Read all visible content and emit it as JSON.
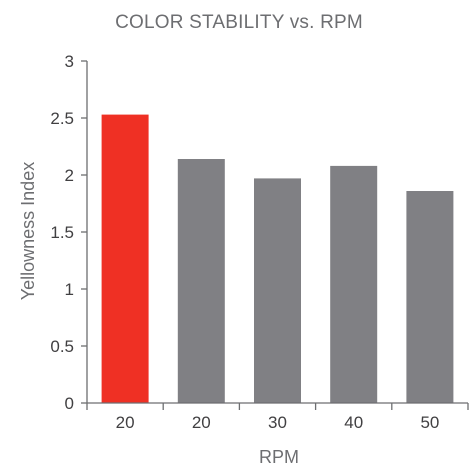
{
  "chart_data": {
    "type": "bar",
    "title": "COLOR STABILITY vs. RPM",
    "xlabel": "RPM",
    "ylabel": "Yellowness Index",
    "categories": [
      "20",
      "20",
      "30",
      "40",
      "50"
    ],
    "values": [
      2.53,
      2.14,
      1.97,
      2.08,
      1.86
    ],
    "ylim": [
      0,
      3
    ],
    "yticks": [
      "0",
      "0.5",
      "1",
      "1.5",
      "2",
      "2.5",
      "3"
    ],
    "grid": false,
    "legend": "none",
    "colors": [
      "#ef3024",
      "#808084",
      "#808084",
      "#808084",
      "#808084"
    ]
  }
}
